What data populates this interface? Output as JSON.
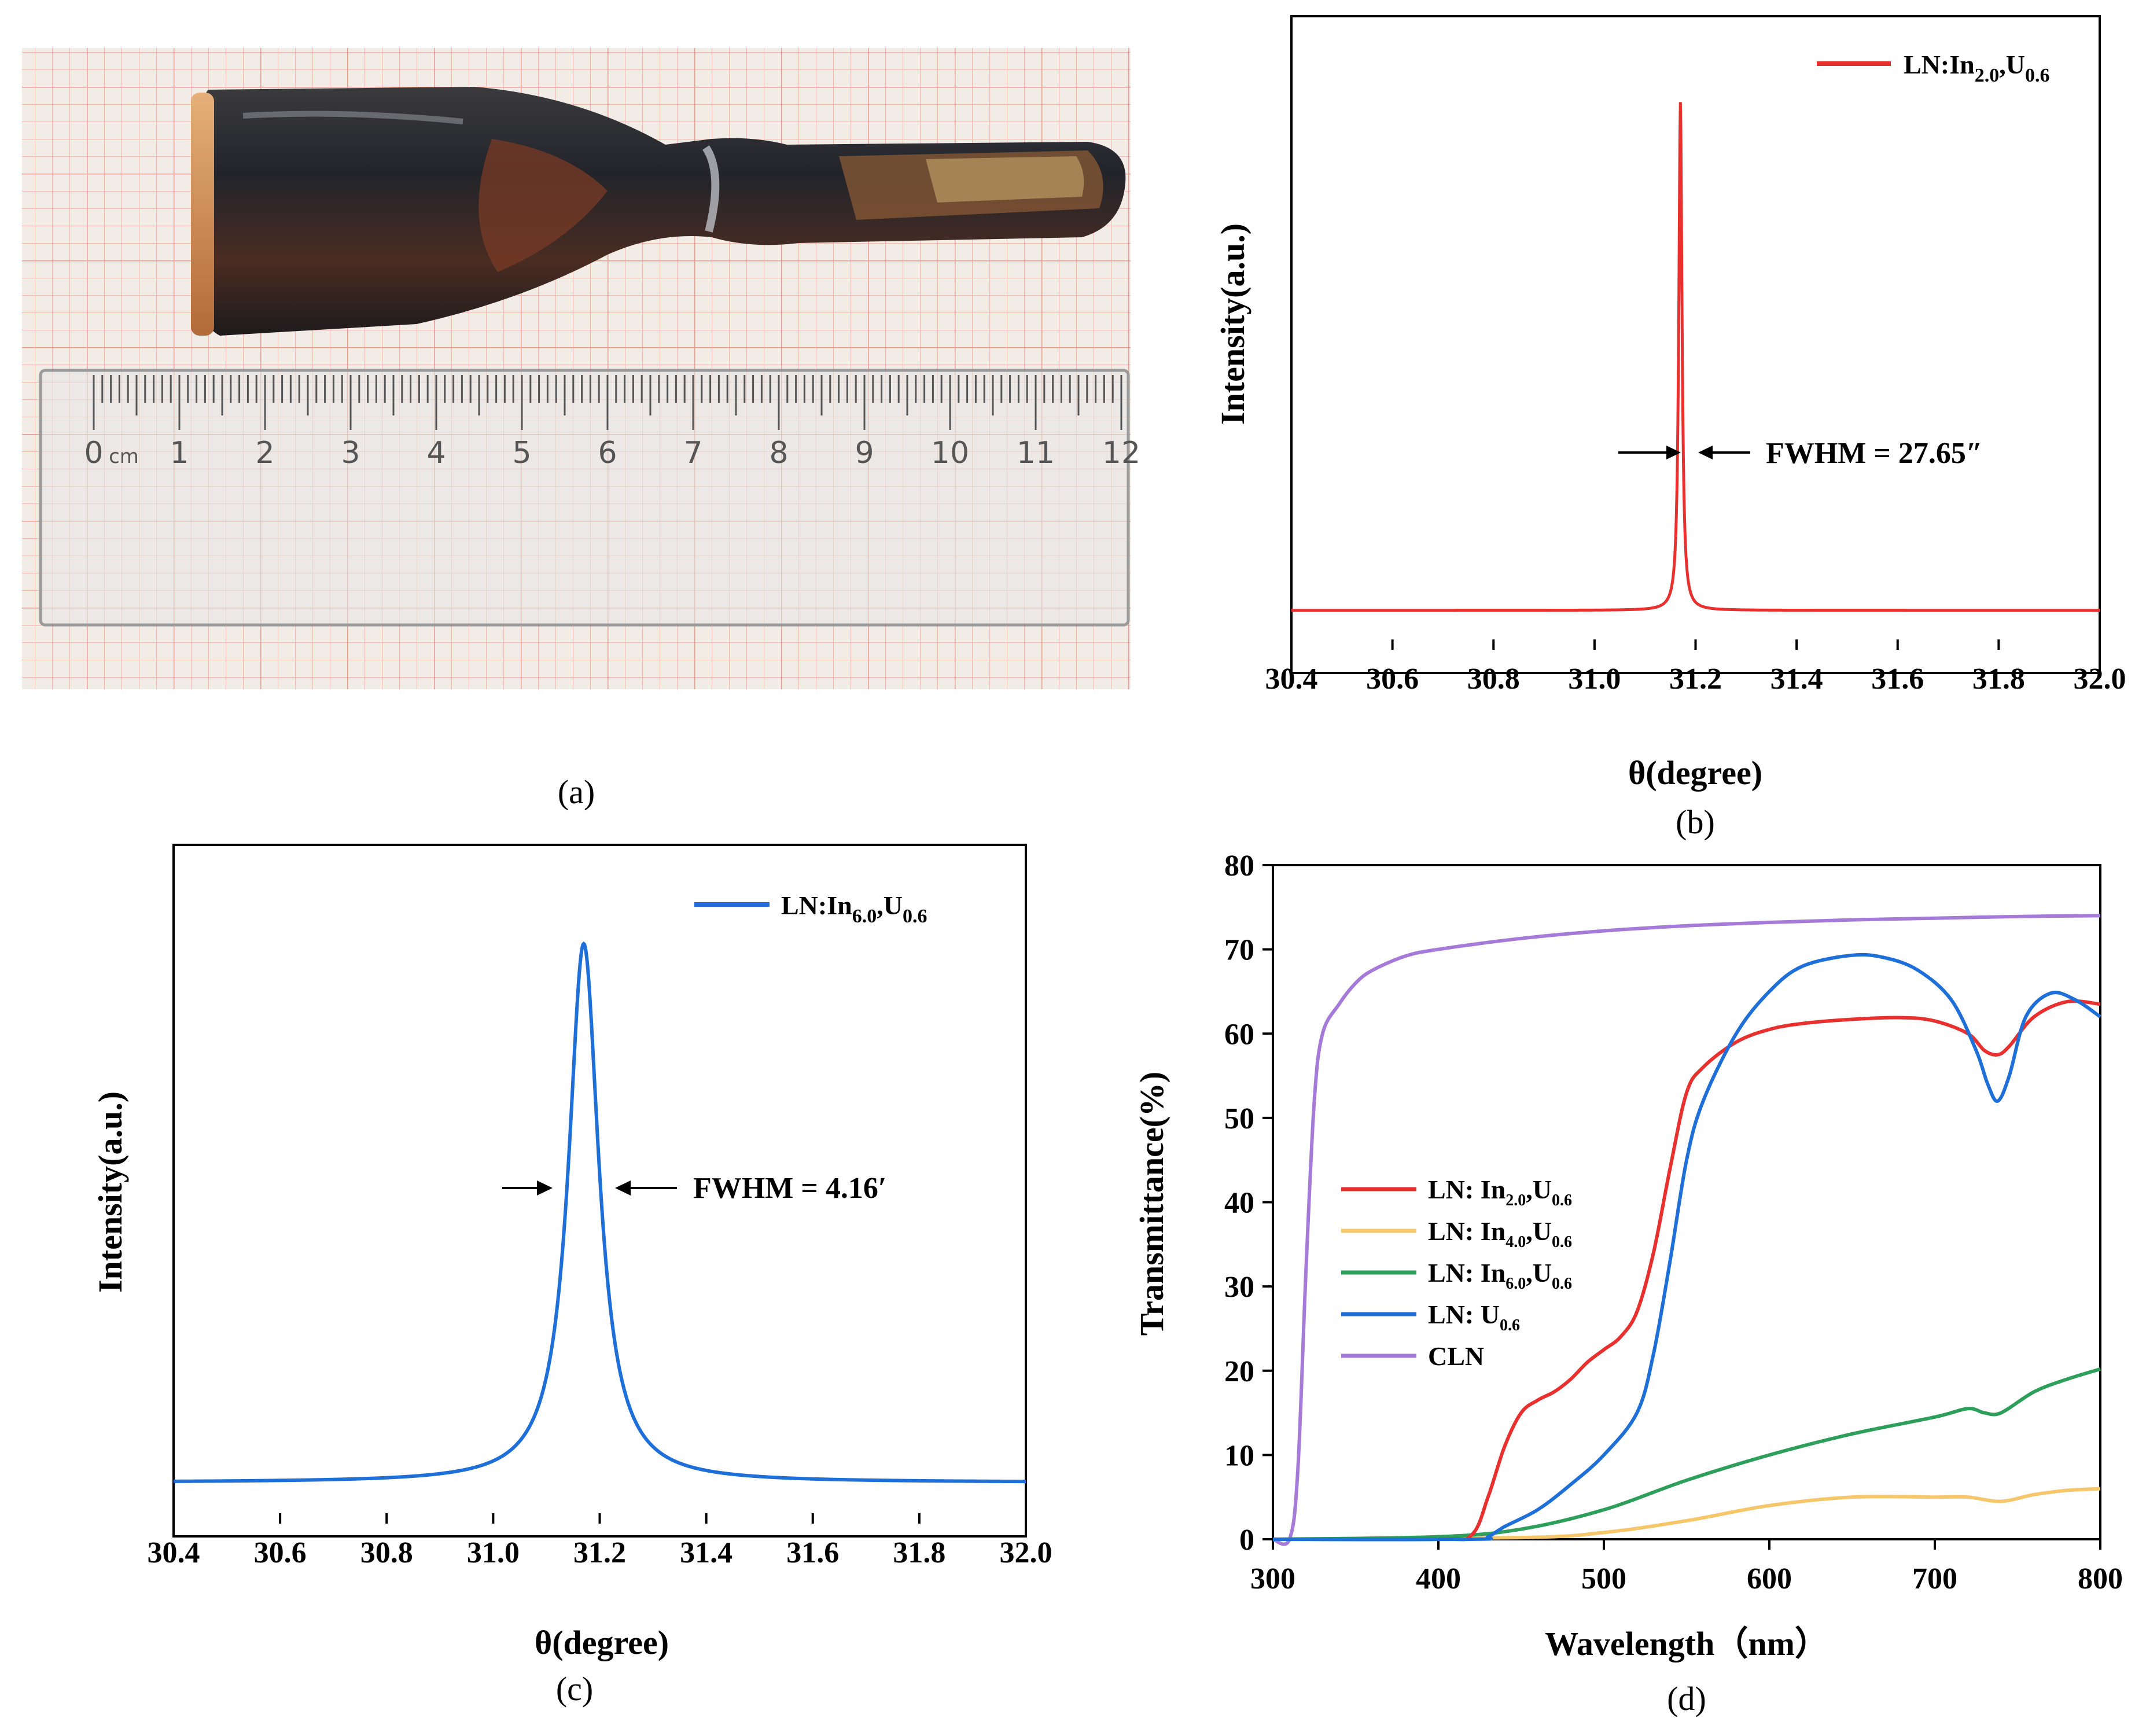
{
  "figure": {
    "panel_labels": [
      "(a)",
      "(b)",
      "(c)",
      "(d)"
    ],
    "photo": {
      "description_icon": "crystal-boule-photo",
      "ruler_numbers": [
        "0",
        "cm",
        "1",
        "2",
        "3",
        "4",
        "5",
        "6",
        "7",
        "8",
        "9",
        "10",
        "11",
        "12"
      ]
    }
  },
  "chart_data": [
    {
      "id": "b",
      "type": "line",
      "xlabel": "θ(degree)",
      "ylabel": "Intensity(a.u.)",
      "xlim": [
        30.4,
        32.0
      ],
      "xticks": [
        "30.4",
        "30.6",
        "30.8",
        "31.0",
        "31.2",
        "31.4",
        "31.6",
        "31.8",
        "32.0"
      ],
      "grid": false,
      "legend_position": "top-right",
      "series": [
        {
          "name": "LN:In2.0,U0.6",
          "name_main": "LN:In",
          "name_sub1": "2.0",
          "name_mid": ",U",
          "name_sub2": "0.6",
          "color": "#e8312f",
          "peak_center": 31.17,
          "peak_fwhm_deg": 0.00768,
          "baseline": 0.05,
          "peak_height": 1.0
        }
      ],
      "annotation": "FWHM = 27.65″"
    },
    {
      "id": "c",
      "type": "line",
      "xlabel": "θ(degree)",
      "ylabel": "Intensity(a.u.)",
      "xlim": [
        30.4,
        32.0
      ],
      "xticks": [
        "30.4",
        "30.6",
        "30.8",
        "31.0",
        "31.2",
        "31.4",
        "31.6",
        "31.8",
        "32.0"
      ],
      "grid": false,
      "legend_position": "top-right",
      "series": [
        {
          "name": "LN:In6.0,U0.6",
          "name_main": "LN:In",
          "name_sub1": "6.0",
          "name_mid": ",U",
          "name_sub2": "0.6",
          "color": "#1f6fd8",
          "peak_center": 31.17,
          "peak_fwhm_deg": 0.0693,
          "baseline": 0.05,
          "peak_height": 1.0
        }
      ],
      "annotation": "FWHM = 4.16′"
    },
    {
      "id": "d",
      "type": "line",
      "xlabel": "Wavelength（nm）",
      "ylabel": "Transmittance(%)",
      "xlim": [
        300,
        800
      ],
      "ylim": [
        0,
        80
      ],
      "xticks": [
        "300",
        "400",
        "500",
        "600",
        "700",
        "800"
      ],
      "yticks": [
        "0",
        "10",
        "20",
        "30",
        "40",
        "50",
        "60",
        "70",
        "80"
      ],
      "grid": false,
      "legend_position": "center-left",
      "series": [
        {
          "name": "LN: In2.0,U0.6",
          "name_main": "LN: In",
          "name_sub1": "2.0",
          "name_mid": ",U",
          "name_sub2": "0.6",
          "color": "#e8312f",
          "x": [
            300,
            400,
            420,
            430,
            440,
            450,
            460,
            470,
            480,
            490,
            500,
            510,
            520,
            530,
            540,
            550,
            560,
            580,
            600,
            620,
            650,
            680,
            700,
            720,
            730,
            738,
            745,
            760,
            780,
            800
          ],
          "y": [
            0,
            0,
            0.5,
            5,
            11,
            15,
            16.5,
            17.5,
            19,
            21,
            22.5,
            24,
            27,
            34,
            44,
            53,
            56,
            59,
            60.5,
            61.2,
            61.7,
            61.9,
            61.5,
            60,
            58,
            57.5,
            58.5,
            62,
            63.8,
            63.5
          ]
        },
        {
          "name": "LN: In4.0,U0.6",
          "name_main": "LN: In",
          "name_sub1": "4.0",
          "name_mid": ",U",
          "name_sub2": "0.6",
          "color": "#f5c76a",
          "x": [
            300,
            450,
            500,
            550,
            600,
            650,
            700,
            720,
            740,
            760,
            780,
            800
          ],
          "y": [
            0,
            0.2,
            0.8,
            2.2,
            4,
            5,
            5,
            5,
            4.5,
            5.3,
            5.8,
            6
          ]
        },
        {
          "name": "LN: In6.0,U0.6",
          "name_main": "LN: In",
          "name_sub1": "6.0",
          "name_mid": ",U",
          "name_sub2": "0.6",
          "color": "#2e9e5b",
          "x": [
            300,
            400,
            450,
            500,
            550,
            600,
            650,
            700,
            720,
            730,
            740,
            760,
            780,
            800
          ],
          "y": [
            0,
            0.3,
            1.2,
            3.5,
            7,
            10,
            12.5,
            14.5,
            15.5,
            15,
            15,
            17.5,
            19,
            20.2
          ]
        },
        {
          "name": "LN: U0.6",
          "name_main": "LN: U",
          "name_sub1": "0.6",
          "name_mid": "",
          "name_sub2": "",
          "color": "#1f6fd8",
          "x": [
            300,
            420,
            430,
            440,
            460,
            480,
            500,
            520,
            530,
            540,
            550,
            560,
            580,
            600,
            620,
            650,
            670,
            690,
            710,
            725,
            732,
            738,
            745,
            755,
            770,
            785,
            800
          ],
          "y": [
            0,
            0,
            0.3,
            1.5,
            3.5,
            6.5,
            10,
            15,
            22,
            33,
            45,
            52,
            60,
            65,
            68,
            69.3,
            69,
            67.5,
            64,
            58,
            54,
            52,
            55,
            62,
            64.8,
            64,
            62
          ]
        },
        {
          "name": "CLN",
          "name_main": "CLN",
          "name_sub1": "",
          "name_mid": "",
          "name_sub2": "",
          "color": "#a57ad8",
          "x": [
            300,
            310,
            315,
            320,
            325,
            330,
            340,
            350,
            360,
            380,
            400,
            450,
            500,
            550,
            600,
            650,
            700,
            750,
            800
          ],
          "y": [
            0,
            0,
            8,
            32,
            52,
            60,
            63.5,
            66,
            67.5,
            69.2,
            70,
            71.3,
            72.2,
            72.8,
            73.2,
            73.5,
            73.7,
            73.9,
            74
          ]
        }
      ]
    }
  ]
}
